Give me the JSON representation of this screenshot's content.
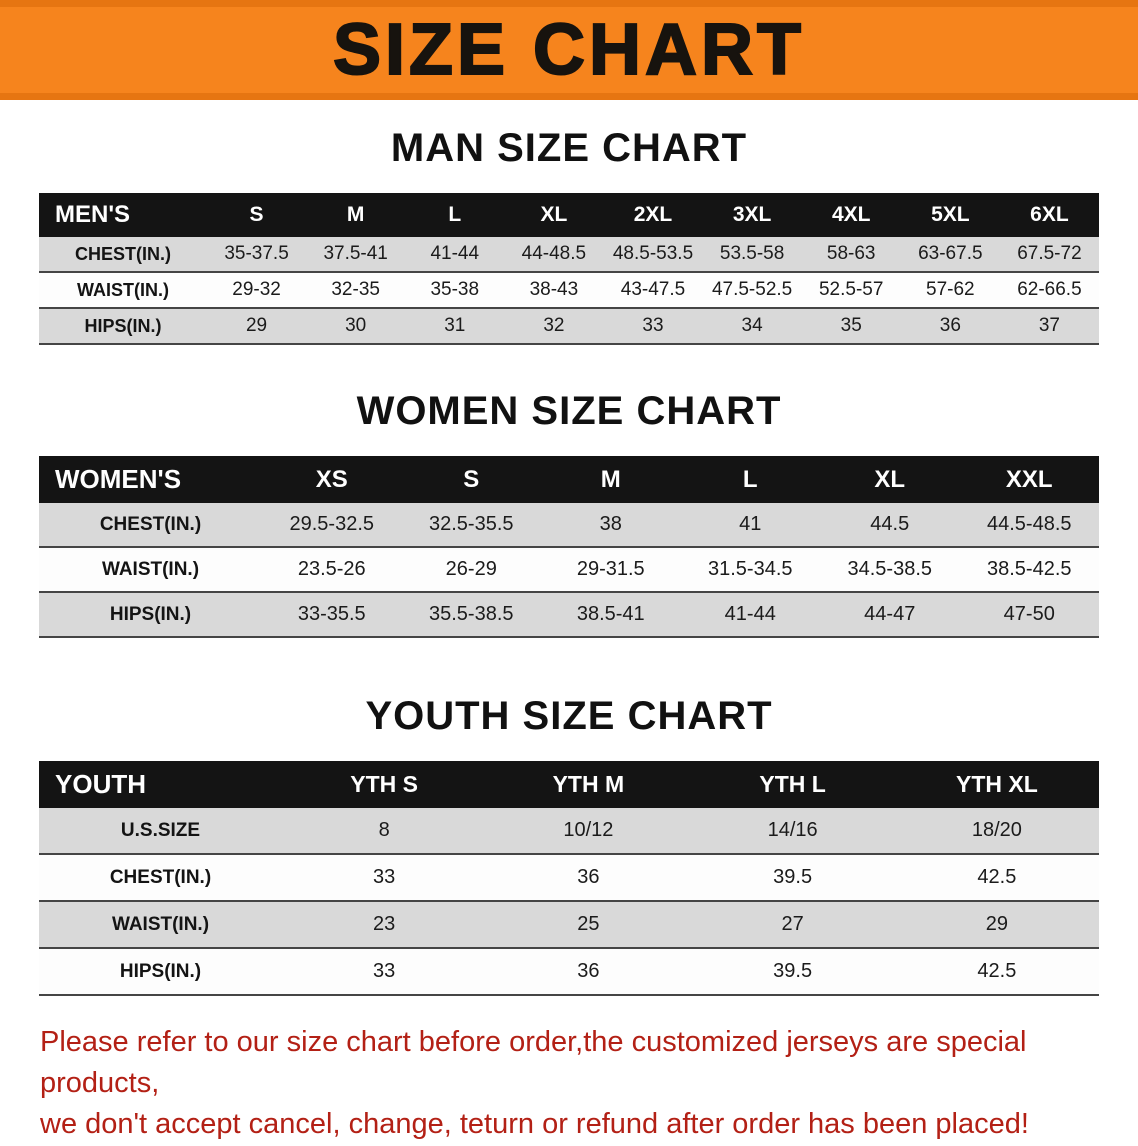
{
  "banner": {
    "title": "SIZE CHART",
    "bg_color": "#f6841d"
  },
  "sections": [
    {
      "heading": "MAN SIZE CHART",
      "table": {
        "header": [
          "MEN'S",
          "S",
          "M",
          "L",
          "XL",
          "2XL",
          "3XL",
          "4XL",
          "5XL",
          "6XL"
        ],
        "rows": [
          [
            "CHEST(IN.)",
            "35-37.5",
            "37.5-41",
            "41-44",
            "44-48.5",
            "48.5-53.5",
            "53.5-58",
            "58-63",
            "63-67.5",
            "67.5-72"
          ],
          [
            "WAIST(IN.)",
            "29-32",
            "32-35",
            "35-38",
            "38-43",
            "43-47.5",
            "47.5-52.5",
            "52.5-57",
            "57-62",
            "62-66.5"
          ],
          [
            "HIPS(IN.)",
            "29",
            "30",
            "31",
            "32",
            "33",
            "34",
            "35",
            "36",
            "37"
          ]
        ]
      }
    },
    {
      "heading": "WOMEN SIZE CHART",
      "table": {
        "header": [
          "WOMEN'S",
          "XS",
          "S",
          "M",
          "L",
          "XL",
          "XXL"
        ],
        "rows": [
          [
            "CHEST(IN.)",
            "29.5-32.5",
            "32.5-35.5",
            "38",
            "41",
            "44.5",
            "44.5-48.5"
          ],
          [
            "WAIST(IN.)",
            "23.5-26",
            "26-29",
            "29-31.5",
            "31.5-34.5",
            "34.5-38.5",
            "38.5-42.5"
          ],
          [
            "HIPS(IN.)",
            "33-35.5",
            "35.5-38.5",
            "38.5-41",
            "41-44",
            "44-47",
            "47-50"
          ]
        ]
      }
    },
    {
      "heading": "YOUTH SIZE CHART",
      "table": {
        "header": [
          "YOUTH",
          "YTH S",
          "YTH M",
          "YTH L",
          "YTH XL"
        ],
        "rows": [
          [
            "U.S.SIZE",
            "8",
            "10/12",
            "14/16",
            "18/20"
          ],
          [
            "CHEST(IN.)",
            "33",
            "36",
            "39.5",
            "42.5"
          ],
          [
            "WAIST(IN.)",
            "23",
            "25",
            "27",
            "29"
          ],
          [
            "HIPS(IN.)",
            "33",
            "36",
            "39.5",
            "42.5"
          ]
        ]
      }
    }
  ],
  "disclaimer": {
    "line1": "Please refer to our size chart before order,the customized jerseys are special products,",
    "line2": "we don't accept cancel, change, teturn or refund after order has been placed!"
  },
  "colors": {
    "banner_orange": "#f6841d",
    "table_header_black": "#141414",
    "zebra_gray": "#d9d9d9",
    "disclaimer_red": "#b32015"
  }
}
